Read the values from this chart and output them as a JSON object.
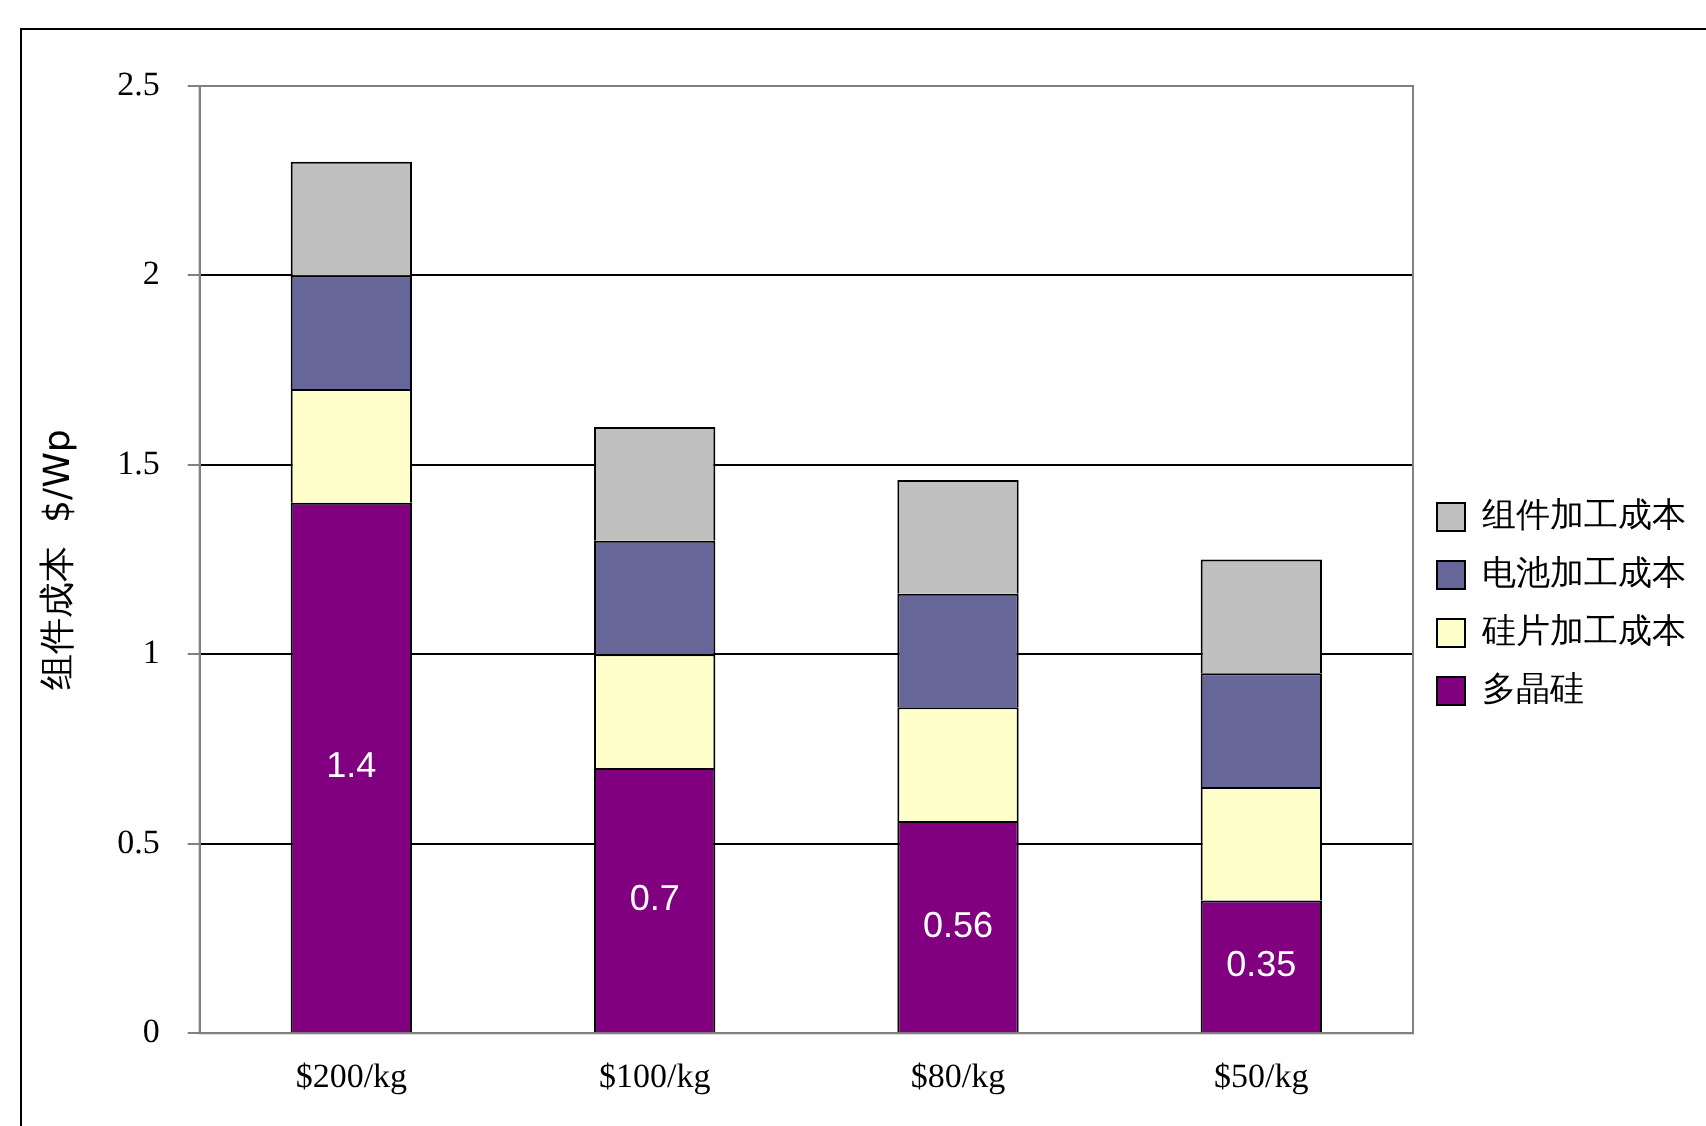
{
  "chart_data": {
    "type": "bar",
    "stacked": true,
    "ylabel": "组件成本  $/Wp",
    "categories": [
      "$200/kg",
      "$100/kg",
      "$80/kg",
      "$50/kg"
    ],
    "series": [
      {
        "name": "多晶硅",
        "color": "#800080",
        "values": [
          1.4,
          0.7,
          0.56,
          0.35
        ],
        "value_labels": [
          "1.4",
          "0.7",
          "0.56",
          "0.35"
        ]
      },
      {
        "name": "硅片加工成本",
        "color": "#ffffcc",
        "values": [
          0.3,
          0.3,
          0.3,
          0.3
        ]
      },
      {
        "name": "电池加工成本",
        "color": "#666699",
        "values": [
          0.3,
          0.3,
          0.3,
          0.3
        ]
      },
      {
        "name": "组件加工成本",
        "color": "#c0c0c0",
        "values": [
          0.3,
          0.3,
          0.3,
          0.3
        ]
      }
    ],
    "ylim": [
      0,
      2.5
    ],
    "yticks": [
      0,
      0.5,
      1,
      1.5,
      2,
      2.5
    ],
    "grid": "y",
    "legend": "right"
  }
}
